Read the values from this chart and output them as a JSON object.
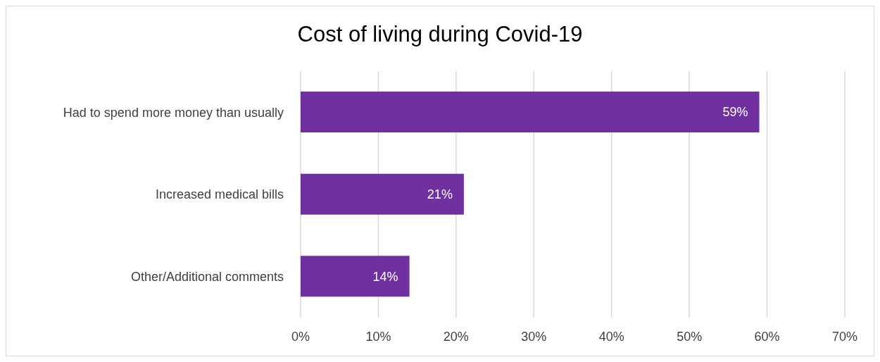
{
  "chart_data": {
    "type": "bar",
    "orientation": "horizontal",
    "title": "Cost of living during Covid-19",
    "categories": [
      "Had to spend more money than usually",
      "Increased medical bills",
      "Other/Additional comments"
    ],
    "values": [
      59,
      21,
      14
    ],
    "color": "#7030a0",
    "value_labels": [
      "59%",
      "21%",
      "14%"
    ],
    "xlim": [
      0,
      70
    ],
    "xticks": [
      {
        "value": 0,
        "label": "0%"
      },
      {
        "value": 10,
        "label": "10%"
      },
      {
        "value": 20,
        "label": "20%"
      },
      {
        "value": 30,
        "label": "30%"
      },
      {
        "value": 40,
        "label": "40%"
      },
      {
        "value": 50,
        "label": "50%"
      },
      {
        "value": 60,
        "label": "60%"
      },
      {
        "value": 70,
        "label": "70%"
      }
    ],
    "grid": "x",
    "legend": false
  }
}
